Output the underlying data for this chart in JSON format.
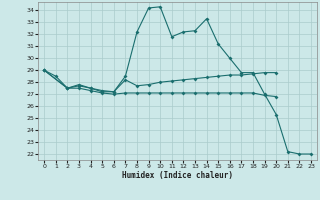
{
  "xlabel": "Humidex (Indice chaleur)",
  "bg_color": "#cce8e8",
  "grid_color": "#aacccc",
  "line_color": "#1a6e6e",
  "xlim": [
    -0.5,
    23.5
  ],
  "ylim": [
    21.5,
    34.7
  ],
  "xticks": [
    0,
    1,
    2,
    3,
    4,
    5,
    6,
    7,
    8,
    9,
    10,
    11,
    12,
    13,
    14,
    15,
    16,
    17,
    18,
    19,
    20,
    21,
    22,
    23
  ],
  "yticks": [
    22,
    23,
    24,
    25,
    26,
    27,
    28,
    29,
    30,
    31,
    32,
    33,
    34
  ],
  "line1_x": [
    0,
    1,
    2,
    3,
    4,
    5,
    6,
    7,
    8,
    9,
    10,
    11,
    12,
    13,
    14,
    15,
    16,
    17,
    18,
    19,
    20,
    21,
    22,
    23
  ],
  "line1_y": [
    29.0,
    28.5,
    27.5,
    27.8,
    27.5,
    27.2,
    27.2,
    28.5,
    32.2,
    34.2,
    34.3,
    31.8,
    32.2,
    32.3,
    33.3,
    31.2,
    30.0,
    28.8,
    28.8,
    27.0,
    25.3,
    22.2,
    22.0,
    22.0
  ],
  "line2_x": [
    0,
    2,
    3,
    4,
    5,
    6,
    7,
    8,
    9,
    10,
    11,
    12,
    13,
    14,
    15,
    16,
    17,
    18,
    19,
    20
  ],
  "line2_y": [
    29.0,
    27.5,
    27.7,
    27.5,
    27.3,
    27.2,
    28.2,
    27.7,
    27.8,
    28.0,
    28.1,
    28.2,
    28.3,
    28.4,
    28.5,
    28.6,
    28.6,
    28.7,
    28.8,
    28.8
  ],
  "line3_x": [
    0,
    2,
    3,
    4,
    5,
    6,
    7,
    8,
    9,
    10,
    11,
    12,
    13,
    14,
    15,
    16,
    17,
    18,
    19,
    20
  ],
  "line3_y": [
    29.0,
    27.5,
    27.5,
    27.3,
    27.1,
    27.0,
    27.1,
    27.1,
    27.1,
    27.1,
    27.1,
    27.1,
    27.1,
    27.1,
    27.1,
    27.1,
    27.1,
    27.1,
    26.9,
    26.8
  ]
}
